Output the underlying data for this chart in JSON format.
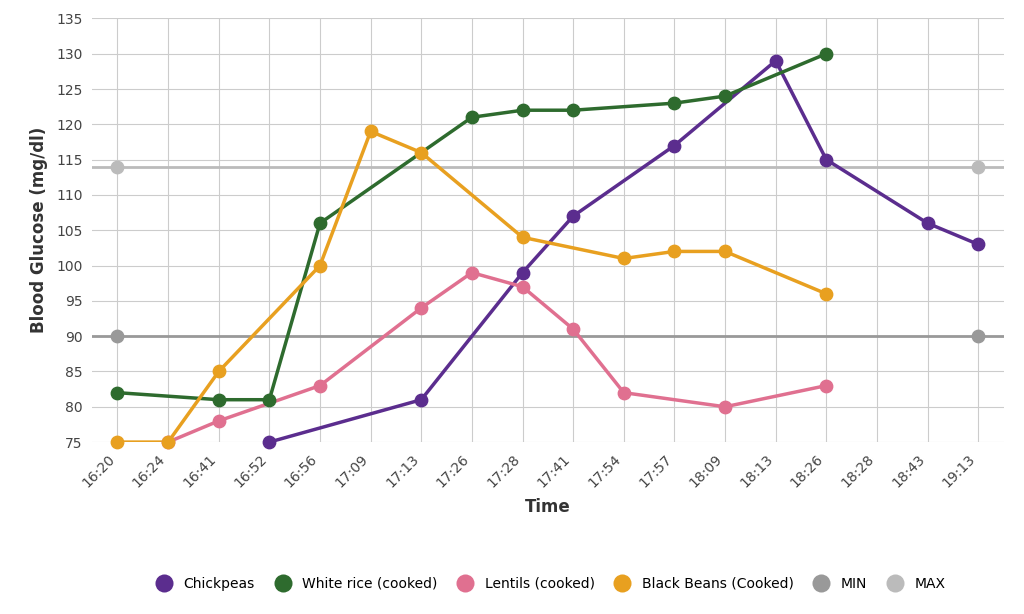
{
  "xlabel": "Time",
  "ylabel": "Blood Glucose (mg/dl)",
  "ylim": [
    75,
    135
  ],
  "yticks": [
    75,
    80,
    85,
    90,
    95,
    100,
    105,
    110,
    115,
    120,
    125,
    130,
    135
  ],
  "x_labels": [
    "16:20",
    "16:24",
    "16:41",
    "16:52",
    "16:56",
    "17:09",
    "17:13",
    "17:26",
    "17:28",
    "17:41",
    "17:54",
    "17:57",
    "18:09",
    "18:13",
    "18:26",
    "18:28",
    "18:43",
    "19:13"
  ],
  "chickpeas": {
    "color": "#5b2d8e",
    "values": [
      null,
      null,
      null,
      75,
      null,
      null,
      81,
      null,
      99,
      107,
      null,
      117,
      null,
      129,
      115,
      null,
      106,
      103
    ],
    "label": "Chickpeas"
  },
  "white_rice": {
    "color": "#2e6b2e",
    "values": [
      82,
      null,
      81,
      81,
      106,
      null,
      null,
      121,
      122,
      122,
      null,
      123,
      124,
      null,
      130,
      null,
      null,
      null
    ],
    "label": "White rice (cooked)"
  },
  "lentils": {
    "color": "#e07090",
    "values": [
      null,
      75,
      78,
      null,
      83,
      null,
      94,
      99,
      97,
      91,
      82,
      null,
      80,
      null,
      83,
      null,
      null,
      null
    ],
    "label": "Lentils (cooked)"
  },
  "black_beans": {
    "color": "#e8a020",
    "values": [
      75,
      75,
      85,
      null,
      100,
      119,
      116,
      null,
      104,
      null,
      101,
      102,
      102,
      null,
      96,
      null,
      null,
      null
    ],
    "label": "Black Beans (Cooked)"
  },
  "min_line": {
    "color": "#999999",
    "value": 90,
    "label": "MIN"
  },
  "max_line": {
    "color": "#bbbbbb",
    "value": 114,
    "label": "MAX"
  },
  "background_color": "#ffffff",
  "grid_color": "#cccccc",
  "tick_fontsize": 10,
  "label_fontsize": 12,
  "line_width": 2.5,
  "marker_size": 80
}
